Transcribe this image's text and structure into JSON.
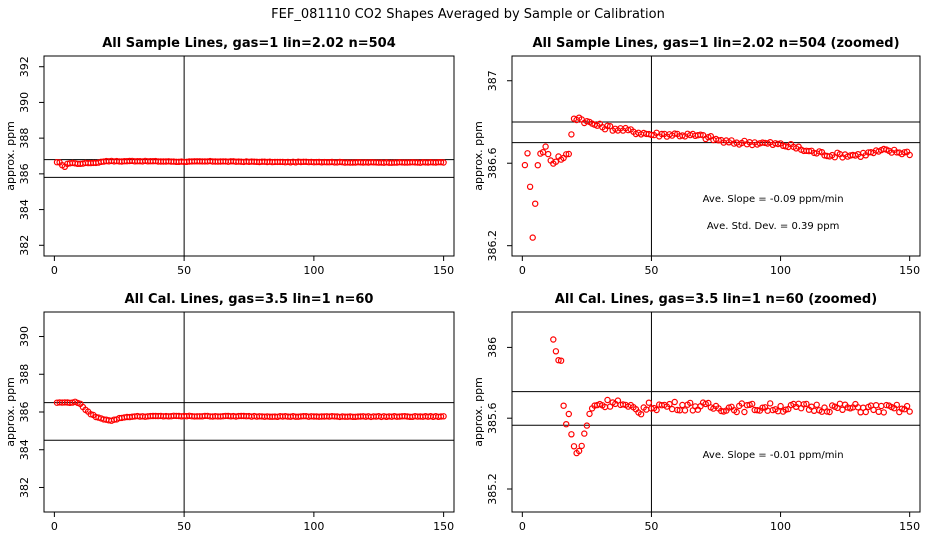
{
  "figure": {
    "title": "FEF_081110  CO2 Shapes Averaged by Sample or Calibration",
    "point_color": "#ff0000",
    "line_color": "#000000"
  },
  "chart_data": [
    {
      "type": "scatter",
      "title": "All Sample Lines, gas=1 lin=2.02 n=504",
      "xlabel": "",
      "ylabel": "approx. ppm",
      "xlim": [
        -4,
        154
      ],
      "ylim": [
        381.4,
        392.6
      ],
      "xticks": [
        0,
        50,
        100,
        150
      ],
      "yticks": [
        382,
        384,
        386,
        388,
        390,
        392
      ],
      "hlines": [
        386.8,
        385.8
      ],
      "vline": 50,
      "annotations": [],
      "shape": {
        "x_start": 1,
        "x_end": 150,
        "anchors": [
          [
            1,
            386.64
          ],
          [
            2,
            386.63
          ],
          [
            3,
            386.5
          ],
          [
            4,
            386.4
          ],
          [
            5,
            386.55
          ],
          [
            6,
            386.6
          ],
          [
            7,
            386.62
          ],
          [
            9,
            386.56
          ],
          [
            12,
            386.6
          ],
          [
            16,
            386.62
          ],
          [
            20,
            386.72
          ],
          [
            25,
            386.7
          ],
          [
            30,
            386.72
          ],
          [
            40,
            386.7
          ],
          [
            50,
            386.68
          ],
          [
            60,
            386.7
          ],
          [
            75,
            386.68
          ],
          [
            90,
            386.66
          ],
          [
            100,
            386.67
          ],
          [
            115,
            386.64
          ],
          [
            125,
            386.64
          ],
          [
            150,
            386.64
          ]
        ],
        "jitter": 0.015
      }
    },
    {
      "type": "scatter",
      "title": "All Sample Lines, gas=1 lin=2.02 n=504 (zoomed)",
      "xlabel": "",
      "ylabel": "approx. ppm",
      "xlim": [
        -4,
        154
      ],
      "ylim": [
        386.15,
        387.12
      ],
      "xticks": [
        0,
        50,
        100,
        150
      ],
      "yticks": [
        386.2,
        386.6,
        387.0
      ],
      "hlines": [
        386.8,
        386.7
      ],
      "vline": 50,
      "annotations": [
        "Ave. Slope = -0.09 ppm/min",
        "Ave. Std. Dev. = 0.39 ppm"
      ],
      "shape": {
        "x_start": 1,
        "x_end": 150,
        "anchors": [
          [
            1,
            386.6
          ],
          [
            2,
            386.64
          ],
          [
            3,
            386.48
          ],
          [
            4,
            386.25
          ],
          [
            5,
            386.41
          ],
          [
            6,
            386.6
          ],
          [
            7,
            386.64
          ],
          [
            8,
            386.66
          ],
          [
            9,
            386.68
          ],
          [
            10,
            386.64
          ],
          [
            12,
            386.6
          ],
          [
            14,
            386.63
          ],
          [
            16,
            386.62
          ],
          [
            18,
            386.65
          ],
          [
            20,
            386.82
          ],
          [
            22,
            386.82
          ],
          [
            25,
            386.8
          ],
          [
            30,
            386.78
          ],
          [
            35,
            386.77
          ],
          [
            40,
            386.76
          ],
          [
            45,
            386.75
          ],
          [
            50,
            386.74
          ],
          [
            60,
            386.74
          ],
          [
            70,
            386.73
          ],
          [
            80,
            386.7
          ],
          [
            90,
            386.7
          ],
          [
            100,
            386.69
          ],
          [
            105,
            386.68
          ],
          [
            110,
            386.66
          ],
          [
            115,
            386.65
          ],
          [
            120,
            386.64
          ],
          [
            130,
            386.64
          ],
          [
            140,
            386.66
          ],
          [
            150,
            386.65
          ]
        ],
        "jitter": 0.012
      }
    },
    {
      "type": "scatter",
      "title": "All Cal. Lines, gas=3.5 lin=1 n=60",
      "xlabel": "",
      "ylabel": "approx. ppm",
      "xlim": [
        -4,
        154
      ],
      "ylim": [
        380.7,
        391.3
      ],
      "xticks": [
        0,
        50,
        100,
        150
      ],
      "yticks": [
        382,
        384,
        386,
        388,
        390
      ],
      "hlines": [
        386.5,
        384.5
      ],
      "vline": 50,
      "annotations": [],
      "shape": {
        "x_start": 1,
        "x_end": 150,
        "anchors": [
          [
            1,
            386.5
          ],
          [
            5,
            386.5
          ],
          [
            8,
            386.52
          ],
          [
            10,
            386.45
          ],
          [
            12,
            386.1
          ],
          [
            14,
            385.9
          ],
          [
            16,
            385.75
          ],
          [
            18,
            385.65
          ],
          [
            20,
            385.6
          ],
          [
            22,
            385.55
          ],
          [
            24,
            385.62
          ],
          [
            26,
            385.7
          ],
          [
            30,
            385.76
          ],
          [
            40,
            385.78
          ],
          [
            50,
            385.78
          ],
          [
            60,
            385.78
          ],
          [
            80,
            385.77
          ],
          [
            100,
            385.76
          ],
          [
            120,
            385.76
          ],
          [
            150,
            385.76
          ]
        ],
        "jitter": 0.02
      }
    },
    {
      "type": "scatter",
      "title": "All Cal. Lines, gas=3.5 lin=1 n=60 (zoomed)",
      "xlabel": "",
      "ylabel": "approx. ppm",
      "xlim": [
        -4,
        154
      ],
      "ylim": [
        385.07,
        386.2
      ],
      "xticks": [
        0,
        50,
        100,
        150
      ],
      "yticks": [
        385.2,
        385.6,
        386.0
      ],
      "hlines": [
        385.75,
        385.56
      ],
      "vline": 50,
      "annotations": [
        "Ave. Slope = -0.01 ppm/min"
      ],
      "shape": {
        "x_start": 12,
        "x_end": 150,
        "anchors": [
          [
            12,
            386.04
          ],
          [
            13,
            385.97
          ],
          [
            14,
            385.95
          ],
          [
            15,
            385.93
          ],
          [
            16,
            385.65
          ],
          [
            17,
            385.59
          ],
          [
            18,
            385.62
          ],
          [
            19,
            385.5
          ],
          [
            20,
            385.45
          ],
          [
            21,
            385.4
          ],
          [
            22,
            385.42
          ],
          [
            23,
            385.45
          ],
          [
            24,
            385.5
          ],
          [
            26,
            385.62
          ],
          [
            28,
            385.68
          ],
          [
            32,
            385.68
          ],
          [
            36,
            385.7
          ],
          [
            40,
            385.66
          ],
          [
            45,
            385.64
          ],
          [
            50,
            385.67
          ],
          [
            60,
            385.67
          ],
          [
            80,
            385.66
          ],
          [
            100,
            385.66
          ],
          [
            120,
            385.66
          ],
          [
            150,
            385.65
          ]
        ],
        "jitter": 0.025
      }
    }
  ]
}
